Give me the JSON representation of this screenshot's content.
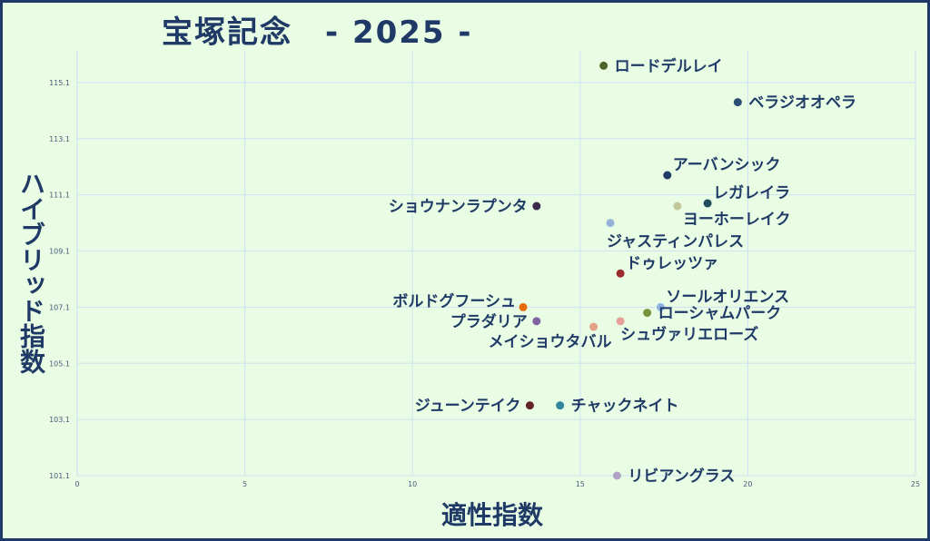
{
  "title": "宝塚記念　- 2025 -",
  "chart_data": {
    "type": "scatter",
    "title": "宝塚記念　- 2025 -",
    "xlabel": "適性指数",
    "ylabel": "ハイブリッド指数",
    "xlim": [
      0,
      25
    ],
    "ylim": [
      101.1,
      116.1
    ],
    "x_ticks": [
      "0",
      "5",
      "10",
      "15",
      "20",
      "25"
    ],
    "y_ticks": [
      "101.1",
      "103.1",
      "105.1",
      "107.1",
      "109.1",
      "111.1",
      "113.1",
      "115.1"
    ],
    "grid": true,
    "points": [
      {
        "label": "ロードデルレイ",
        "x": 15.7,
        "y": 115.7,
        "color": "#4f6228",
        "label_pos": "right"
      },
      {
        "label": "ベラジオオペラ",
        "x": 19.7,
        "y": 114.4,
        "color": "#2c4d75",
        "label_pos": "right"
      },
      {
        "label": "アーバンシック",
        "x": 17.6,
        "y": 111.8,
        "color": "#1f3a66",
        "label_pos": "right-up"
      },
      {
        "label": "レガレイラ",
        "x": 18.8,
        "y": 110.8,
        "color": "#1e4d5c",
        "label_pos": "right-up"
      },
      {
        "label": "ショウナンラプンタ",
        "x": 13.7,
        "y": 110.7,
        "color": "#3c2a4d",
        "label_pos": "left"
      },
      {
        "label": "ヨーホーレイク",
        "x": 17.9,
        "y": 110.7,
        "color": "#c3c89a",
        "label_pos": "right-down"
      },
      {
        "label": "ジャスティンパレス",
        "x": 15.9,
        "y": 110.1,
        "color": "#95b3d7",
        "label_pos": "below"
      },
      {
        "label": "ドゥレッツァ",
        "x": 16.2,
        "y": 108.3,
        "color": "#9b2d30",
        "label_pos": "right-up"
      },
      {
        "label": "ソールオリエンス",
        "x": 17.4,
        "y": 107.1,
        "color": "#8db4e2",
        "label_pos": "right-up"
      },
      {
        "label": "ボルドグフーシュ",
        "x": 13.3,
        "y": 107.1,
        "color": "#e46c0a",
        "label_pos": "left-up"
      },
      {
        "label": "ローシャムパーク",
        "x": 17.0,
        "y": 106.9,
        "color": "#77933c",
        "label_pos": "right"
      },
      {
        "label": "プラダリア",
        "x": 13.7,
        "y": 106.6,
        "color": "#8064a2",
        "label_pos": "left"
      },
      {
        "label": "シュヴァリエローズ",
        "x": 16.2,
        "y": 106.6,
        "color": "#e6a09a",
        "label_pos": "below-right"
      },
      {
        "label": "メイショウタバル",
        "x": 15.4,
        "y": 106.4,
        "color": "#e6a08a",
        "label_pos": "below-left"
      },
      {
        "label": "ジューンテイク",
        "x": 13.5,
        "y": 103.6,
        "color": "#632523",
        "label_pos": "left"
      },
      {
        "label": "チャックネイト",
        "x": 14.4,
        "y": 103.6,
        "color": "#31859c",
        "label_pos": "right"
      },
      {
        "label": "リビアングラス",
        "x": 16.1,
        "y": 101.1,
        "color": "#b3a2c7",
        "label_pos": "right"
      }
    ]
  },
  "colors": {
    "background": "#e9fde4",
    "frame": "#1f3a66",
    "grid": "#cfe1f3",
    "text": "#1f3a66"
  }
}
